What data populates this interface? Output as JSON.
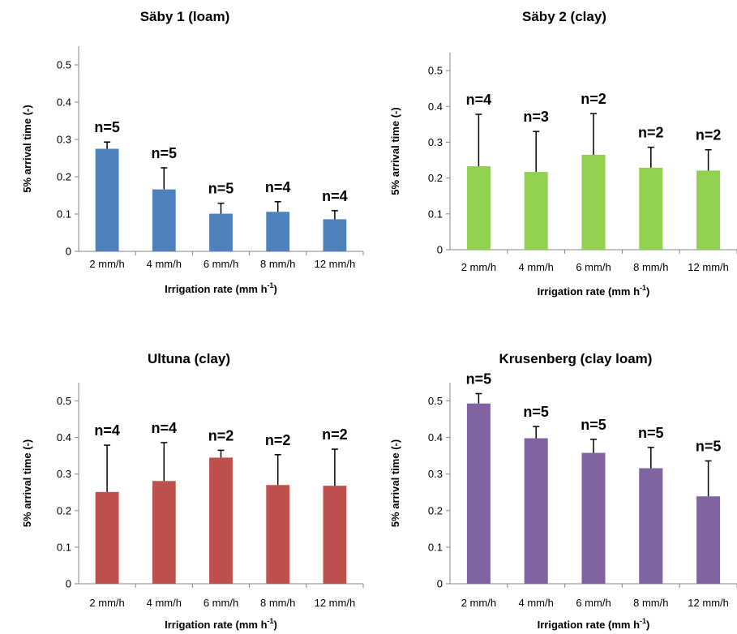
{
  "chart_data": [
    {
      "type": "bar",
      "title": "Säby 1 (loam)",
      "ylabel": "5% arrival time (-)",
      "xlabel_main": "Irrigation rate (mm h",
      "xlabel_sup": "-1",
      "xlabel_end": ")",
      "categories": [
        "2 mm/h",
        "4 mm/h",
        "6 mm/h",
        "8 mm/h",
        "12 mm/h"
      ],
      "values": [
        0.275,
        0.166,
        0.101,
        0.106,
        0.086
      ],
      "errors": [
        0.018,
        0.058,
        0.028,
        0.027,
        0.023
      ],
      "n_labels": [
        "n=5",
        "n=5",
        "n=5",
        "n=4",
        "n=4"
      ],
      "yticks": [
        "0",
        "0.1",
        "0.2",
        "0.3",
        "0.4",
        "0.5"
      ],
      "ylim": [
        0,
        0.55
      ],
      "color": "#4f81bd"
    },
    {
      "type": "bar",
      "title": "Säby 2 (clay)",
      "ylabel": "5% arrival time (-)",
      "xlabel_main": "Irrigation rate (mm h",
      "xlabel_sup": "-1",
      "xlabel_end": ")",
      "categories": [
        "2 mm/h",
        "4 mm/h",
        "6 mm/h",
        "8 mm/h",
        "12 mm/h"
      ],
      "values": [
        0.233,
        0.217,
        0.265,
        0.229,
        0.221
      ],
      "errors": [
        0.145,
        0.113,
        0.115,
        0.057,
        0.058
      ],
      "n_labels": [
        "n=4",
        "n=3",
        "n=2",
        "n=2",
        "n=2"
      ],
      "yticks": [
        "0",
        "0.1",
        "0.2",
        "0.3",
        "0.4",
        "0.5"
      ],
      "ylim": [
        0,
        0.55
      ],
      "color": "#92d050"
    },
    {
      "type": "bar",
      "title": "Ultuna (clay)",
      "ylabel": "5% arrival time (-)",
      "xlabel_main": "Irrigation rate (mm h",
      "xlabel_sup": "-1",
      "xlabel_end": ")",
      "categories": [
        "2 mm/h",
        "4 mm/h",
        "6 mm/h",
        "8 mm/h",
        "12 mm/h"
      ],
      "values": [
        0.251,
        0.281,
        0.345,
        0.27,
        0.268
      ],
      "errors": [
        0.128,
        0.105,
        0.02,
        0.083,
        0.1
      ],
      "n_labels": [
        "n=4",
        "n=4",
        "n=2",
        "n=2",
        "n=2"
      ],
      "yticks": [
        "0",
        "0.1",
        "0.2",
        "0.3",
        "0.4",
        "0.5"
      ],
      "ylim": [
        0,
        0.55
      ],
      "color": "#c0504d"
    },
    {
      "type": "bar",
      "title": "Krusenberg (clay loam)",
      "ylabel": "5% arrival time (-)",
      "xlabel_main": "Irrigation rate (mm h",
      "xlabel_sup": "-1",
      "xlabel_end": ")",
      "categories": [
        "2 mm/h",
        "4 mm/h",
        "6 mm/h",
        "8 mm/h",
        "12 mm/h"
      ],
      "values": [
        0.493,
        0.398,
        0.358,
        0.316,
        0.239
      ],
      "errors": [
        0.027,
        0.032,
        0.037,
        0.057,
        0.097
      ],
      "n_labels": [
        "n=5",
        "n=5",
        "n=5",
        "n=5",
        "n=5"
      ],
      "yticks": [
        "0",
        "0.1",
        "0.2",
        "0.3",
        "0.4",
        "0.5"
      ],
      "ylim": [
        0,
        0.55
      ],
      "color": "#8064a2"
    }
  ]
}
